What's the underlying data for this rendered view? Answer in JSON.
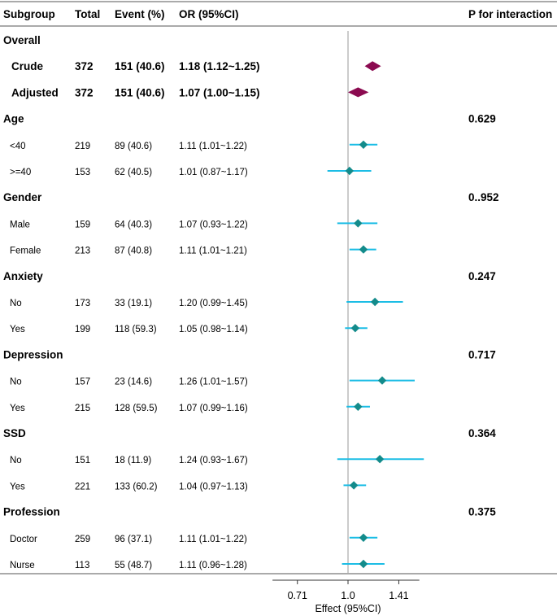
{
  "headers": {
    "subgroup": "Subgroup",
    "total": "Total",
    "event": "Event (%)",
    "or": "OR (95%CI)",
    "p": "P for interaction"
  },
  "colors": {
    "overall_marker": "#8b0a50",
    "subgroup_marker": "#138b8b",
    "ci_line": "#1cbde5",
    "ref_line": "#aaaaaa",
    "rule": "#555555"
  },
  "chart_data": {
    "type": "forest",
    "xlabel": "Effect (95%CI)",
    "xscale": "log2",
    "xlim": [
      0.6,
      1.62
    ],
    "ticks": [
      0.71,
      1.0,
      1.41
    ],
    "tick_labels": [
      "0.71",
      "1.0",
      "1.41"
    ],
    "reference": 1.0,
    "rows": [
      {
        "kind": "group",
        "label": "Overall"
      },
      {
        "kind": "overall",
        "label": "Crude",
        "total": "372",
        "event": "151 (40.6)",
        "or_text": "1.18 (1.12~1.25)",
        "or": 1.18,
        "lo": 1.12,
        "hi": 1.25
      },
      {
        "kind": "overall",
        "label": "Adjusted",
        "total": "372",
        "event": "151 (40.6)",
        "or_text": "1.07 (1.00~1.15)",
        "or": 1.07,
        "lo": 1.0,
        "hi": 1.15
      },
      {
        "kind": "group",
        "label": "Age",
        "p": "0.629"
      },
      {
        "kind": "sub",
        "label": "<40",
        "total": "219",
        "event": "89 (40.6)",
        "or_text": "1.11 (1.01~1.22)",
        "or": 1.11,
        "lo": 1.01,
        "hi": 1.22
      },
      {
        "kind": "sub",
        "label": ">=40",
        "total": "153",
        "event": "62 (40.5)",
        "or_text": "1.01 (0.87~1.17)",
        "or": 1.01,
        "lo": 0.87,
        "hi": 1.17
      },
      {
        "kind": "group",
        "label": "Gender",
        "p": "0..952"
      },
      {
        "kind": "sub",
        "label": "Male",
        "total": "159",
        "event": "64 (40.3)",
        "or_text": "1.07 (0.93~1.22)",
        "or": 1.07,
        "lo": 0.93,
        "hi": 1.22
      },
      {
        "kind": "sub",
        "label": "Female",
        "total": "213",
        "event": "87 (40.8)",
        "or_text": "1.11 (1.01~1.21)",
        "or": 1.11,
        "lo": 1.01,
        "hi": 1.21
      },
      {
        "kind": "group",
        "label": "Anxiety",
        "p": "0.247"
      },
      {
        "kind": "sub",
        "label": "No",
        "total": "173",
        "event": "33 (19.1)",
        "or_text": "1.20 (0.99~1.45)",
        "or": 1.2,
        "lo": 0.99,
        "hi": 1.45
      },
      {
        "kind": "sub",
        "label": "Yes",
        "total": "199",
        "event": "118 (59.3)",
        "or_text": "1.05 (0.98~1.14)",
        "or": 1.05,
        "lo": 0.98,
        "hi": 1.14
      },
      {
        "kind": "group",
        "label": "Depression",
        "p": "0.717"
      },
      {
        "kind": "sub",
        "label": "No",
        "total": "157",
        "event": "23 (14.6)",
        "or_text": "1.26 (1.01~1.57)",
        "or": 1.26,
        "lo": 1.01,
        "hi": 1.57
      },
      {
        "kind": "sub",
        "label": "Yes",
        "total": "215",
        "event": "128 (59.5)",
        "or_text": "1.07 (0.99~1.16)",
        "or": 1.07,
        "lo": 0.99,
        "hi": 1.16
      },
      {
        "kind": "group",
        "label": "SSD",
        "p": "0.364"
      },
      {
        "kind": "sub",
        "label": "No",
        "total": "151",
        "event": "18 (11.9)",
        "or_text": "1.24 (0.93~1.67)",
        "or": 1.24,
        "lo": 0.93,
        "hi": 1.67
      },
      {
        "kind": "sub",
        "label": "Yes",
        "total": "221",
        "event": "133 (60.2)",
        "or_text": "1.04 (0.97~1.13)",
        "or": 1.04,
        "lo": 0.97,
        "hi": 1.13
      },
      {
        "kind": "group",
        "label": "Profession",
        "p": "0.375"
      },
      {
        "kind": "sub",
        "label": "Doctor",
        "total": "259",
        "event": "96 (37.1)",
        "or_text": "1.11 (1.01~1.22)",
        "or": 1.11,
        "lo": 1.01,
        "hi": 1.22
      },
      {
        "kind": "sub",
        "label": "Nurse",
        "total": "113",
        "event": "55 (48.7)",
        "or_text": "1.11 (0.96~1.28)",
        "or": 1.11,
        "lo": 0.96,
        "hi": 1.28
      }
    ]
  }
}
